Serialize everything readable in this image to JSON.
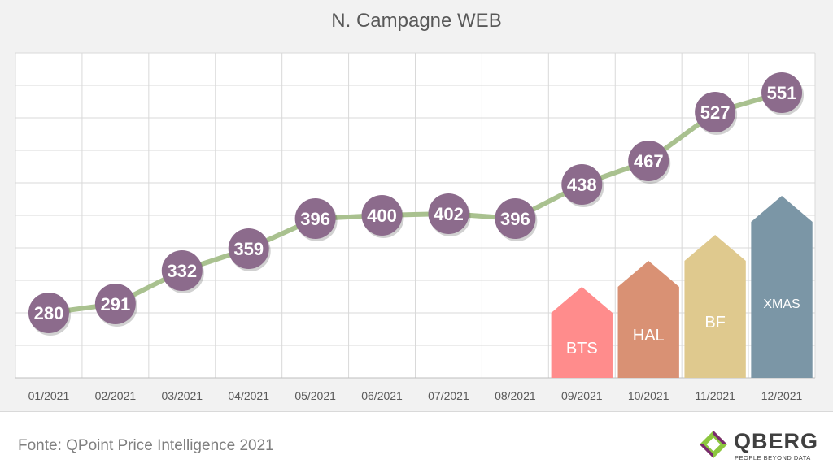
{
  "chart_data": {
    "type": "line",
    "title": "N. Campagne WEB",
    "categories": [
      "01/2021",
      "02/2021",
      "03/2021",
      "04/2021",
      "05/2021",
      "06/2021",
      "07/2021",
      "08/2021",
      "09/2021",
      "10/2021",
      "11/2021",
      "12/2021"
    ],
    "values": [
      280,
      291,
      332,
      359,
      396,
      400,
      402,
      396,
      438,
      467,
      527,
      551
    ],
    "ylim": [
      200,
      600
    ],
    "grid": true,
    "line_color": "#a9c18f",
    "marker_color": "#8c6b8c",
    "annotations": [
      {
        "label": "BTS",
        "category": "09/2021",
        "level": 0.28,
        "color": "#ff8c8c"
      },
      {
        "label": "HAL",
        "category": "10/2021",
        "level": 0.36,
        "color": "#d99174"
      },
      {
        "label": "BF",
        "category": "11/2021",
        "level": 0.44,
        "color": "#dfc98e"
      },
      {
        "label": "XMAS",
        "category": "12/2021",
        "level": 0.56,
        "color": "#7b96a6"
      }
    ]
  },
  "footer": {
    "source": "Fonte: QPoint Price Intelligence 2021"
  },
  "brand": {
    "name": "QBERG",
    "tagline": "PEOPLE BEYOND DATA",
    "icon": "qberg-logo-icon"
  }
}
